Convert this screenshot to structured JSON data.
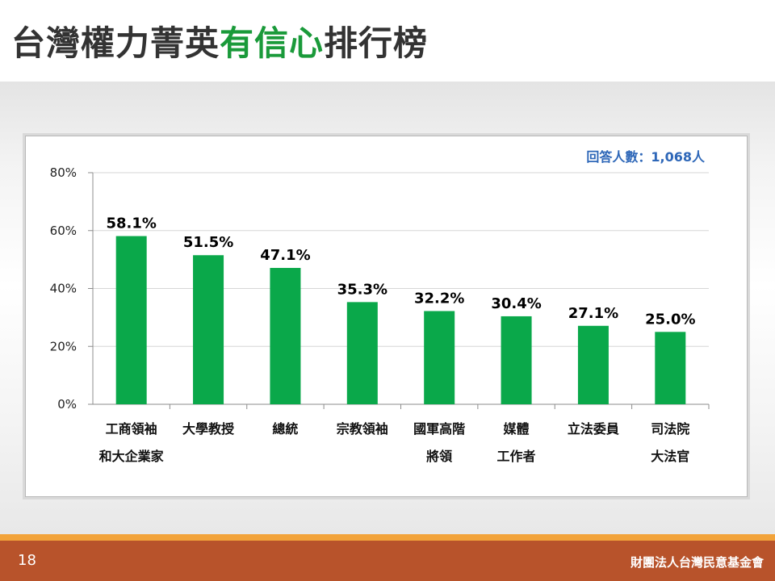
{
  "slide": {
    "title_part1": "台灣權力菁英",
    "title_highlight": "有信心",
    "title_part2": "排行榜",
    "respondents": "回答人數：1,068人",
    "page_number": "18",
    "organization": "財團法人台灣民意基金會"
  },
  "colors": {
    "bar": "#0aa84a",
    "title_highlight": "#1a9a3a",
    "footer": "#b8532b",
    "footer_line": "#f2a33a",
    "respondents_text": "#2e67b8"
  },
  "chart_data": {
    "type": "bar",
    "categories": [
      [
        "工商領袖",
        "和大企業家"
      ],
      [
        "大學教授"
      ],
      [
        "總統"
      ],
      [
        "宗教領袖"
      ],
      [
        "國軍高階",
        "將領"
      ],
      [
        "媒體",
        "工作者"
      ],
      [
        "立法委員"
      ],
      [
        "司法院",
        "大法官"
      ]
    ],
    "values": [
      58.1,
      51.5,
      47.1,
      35.3,
      32.2,
      30.4,
      27.1,
      25.0
    ],
    "value_labels": [
      "58.1%",
      "51.5%",
      "47.1%",
      "35.3%",
      "32.2%",
      "30.4%",
      "27.1%",
      "25.0%"
    ],
    "yticks": [
      0,
      20,
      40,
      60,
      80
    ],
    "ytick_labels": [
      "0%",
      "20%",
      "40%",
      "60%",
      "80%"
    ],
    "ylim": [
      0,
      80
    ],
    "grid": true,
    "legend": "none"
  }
}
